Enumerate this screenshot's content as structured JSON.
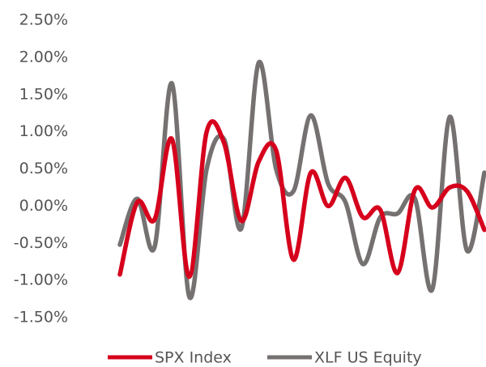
{
  "chart_data": {
    "type": "line",
    "categories": [
      null,
      null,
      null,
      null,
      null,
      null,
      null,
      null,
      null,
      null,
      null,
      null,
      null,
      null,
      null,
      null,
      null,
      null,
      null,
      null,
      null,
      null
    ],
    "series": [
      {
        "name": "SPX Index",
        "color": "#d6001c",
        "values": [
          -0.92,
          0.05,
          -0.18,
          0.9,
          -0.95,
          1.0,
          0.85,
          -0.2,
          0.6,
          0.75,
          -0.72,
          0.45,
          0.0,
          0.38,
          -0.15,
          -0.05,
          -0.9,
          0.22,
          -0.02,
          0.25,
          0.2,
          -0.32
        ]
      },
      {
        "name": "XLF US Equity",
        "color": "#767171",
        "values": [
          -0.52,
          0.1,
          -0.55,
          1.65,
          -1.22,
          0.5,
          0.9,
          -0.3,
          1.93,
          0.5,
          0.2,
          1.22,
          0.3,
          0.05,
          -0.78,
          -0.15,
          -0.1,
          0.1,
          -1.12,
          1.2,
          -0.6,
          0.45
        ]
      }
    ],
    "ylim": [
      -1.5,
      2.5
    ],
    "yticks": [
      {
        "value": -1.5,
        "label": "-1.50%"
      },
      {
        "value": -1.0,
        "label": "-1.00%"
      },
      {
        "value": -0.5,
        "label": "-0.50%"
      },
      {
        "value": 0,
        "label": "0.00%"
      },
      {
        "value": 0.5,
        "label": "0.50%"
      },
      {
        "value": 1.0,
        "label": "1.00%"
      },
      {
        "value": 1.5,
        "label": "1.50%"
      },
      {
        "value": 2.0,
        "label": "2.00%"
      },
      {
        "value": 2.5,
        "label": "2.50%"
      }
    ],
    "grid": false,
    "legend": "bottom"
  }
}
